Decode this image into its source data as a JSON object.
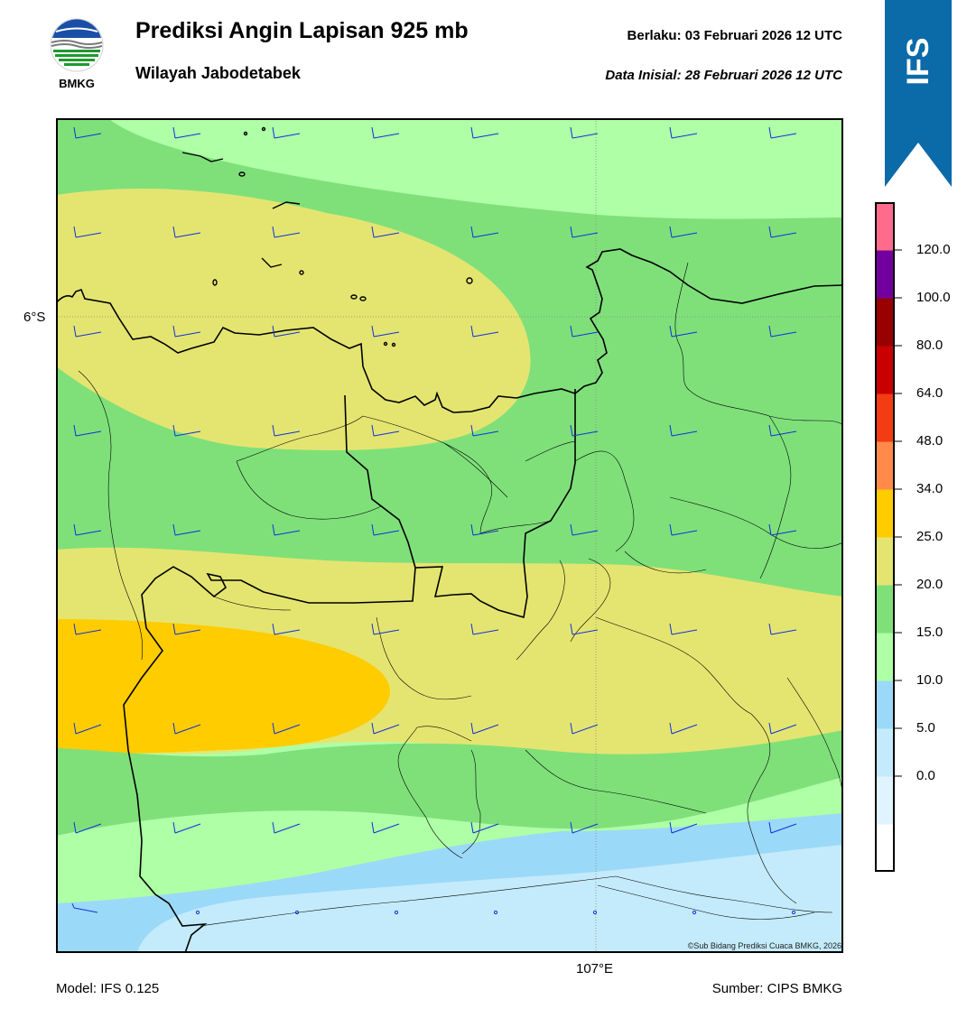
{
  "header": {
    "title": "Prediksi Angin Lapisan 925 mb",
    "subtitle": "Wilayah Jabodetabek",
    "valid_label": "Berlaku:  03 Februari 2026 12 UTC",
    "init_label": "Data Inisial:  28 Februari 2026 12 UTC",
    "logo_text": "BMKG"
  },
  "ribbon": {
    "text": "IFS",
    "color": "#0b6aa8"
  },
  "map": {
    "lat_label": "6°S",
    "lon_label": "107°E",
    "credit": "©Sub Bidang Prediksi Cuaca BMKG, 2026",
    "wind_barb_color": "#1030e0"
  },
  "footer": {
    "model": "Model: IFS 0.125",
    "source": "Sumber: CIPS BMKG"
  },
  "colorbar": {
    "ticks": [
      "120.0",
      "100.0",
      "80.0",
      "64.0",
      "48.0",
      "34.0",
      "25.0",
      "20.0",
      "15.0",
      "10.0",
      "5.0",
      "0.0"
    ],
    "colors": [
      "#ffffff",
      "#dff4ff",
      "#c4ebfb",
      "#9bd9f8",
      "#aeffa6",
      "#7fe07a",
      "#e4e570",
      "#ffcc00",
      "#ff8a4a",
      "#f33b14",
      "#c80000",
      "#990000",
      "#72009e",
      "#ff6b8b"
    ]
  }
}
